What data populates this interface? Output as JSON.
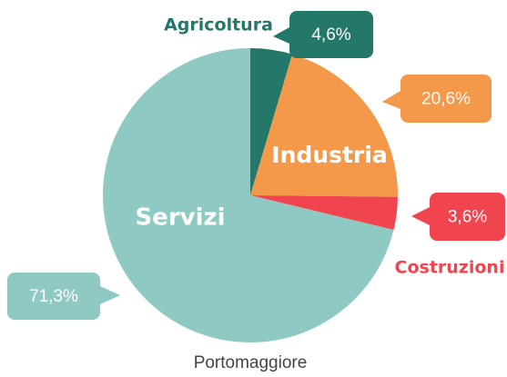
{
  "chart_data": {
    "type": "pie",
    "title": "Portomaggiore",
    "categories": [
      "Agricoltura",
      "Industria",
      "Costruzioni",
      "Servizi"
    ],
    "values": [
      4.6,
      20.6,
      3.6,
      71.3
    ],
    "value_labels": [
      "4,6%",
      "20,6%",
      "3,6%",
      "71,3%"
    ],
    "colors": [
      "#23786a",
      "#f4994a",
      "#f0454f",
      "#8fc9c3"
    ]
  }
}
